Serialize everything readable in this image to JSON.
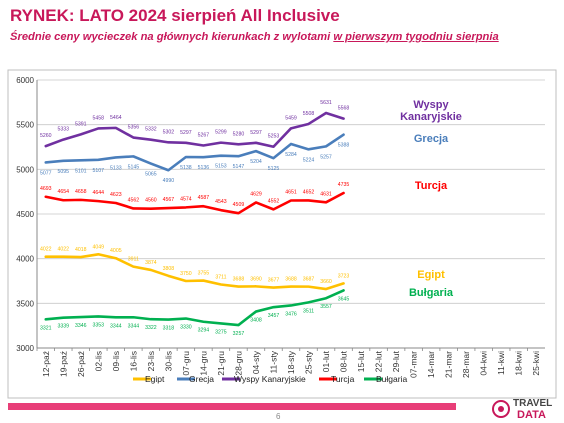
{
  "header": {
    "title": "RYNEK: LATO 2024 sierpień All Inclusive",
    "subtitle_prefix": "Średnie ceny wycieczek na głównych kierunkach z wylotami ",
    "subtitle_underlined": "w pierwszym tygodniu sierpnia"
  },
  "chart_data": {
    "type": "line",
    "categories": [
      "12-paź",
      "19-paź",
      "26-paź",
      "02-lis",
      "09-lis",
      "16-lis",
      "23-lis",
      "30-lis",
      "07-gru",
      "14-gru",
      "21-gru",
      "28-gru",
      "04-sty",
      "11-sty",
      "18-sty",
      "25-sty",
      "01-lut",
      "08-lut",
      "15-lut",
      "22-lut",
      "29-lut",
      "07-mar",
      "14-mar",
      "21-mar",
      "28-mar",
      "04-kwi",
      "11-kwi",
      "18-kwi",
      "25-kwi"
    ],
    "ylim": [
      3000,
      6000
    ],
    "yticks": [
      "3000",
      "3500",
      "4000",
      "4500",
      "5000",
      "5500",
      "6000"
    ],
    "grid": true,
    "legend_position": "bottom",
    "series": [
      {
        "name": "Egipt",
        "color": "#ffc000",
        "label_color": "#ffc000",
        "values": [
          4022,
          4022,
          4018,
          4049,
          4005,
          3911,
          3874,
          3808,
          3750,
          3755,
          3711,
          3688,
          3690,
          3677,
          3688,
          3687,
          3660,
          3723,
          null,
          null,
          null,
          null,
          null,
          null,
          null,
          null,
          null,
          null,
          null
        ],
        "labels": [
          "4022",
          "4022",
          "4018",
          "4049",
          "4005",
          "3911",
          "3874",
          "3808",
          "3750",
          "3755",
          "3711",
          "3688",
          "3690",
          "3677",
          "3688",
          "3687",
          "3660",
          "3723",
          "",
          "",
          "",
          "",
          "",
          "",
          "",
          "",
          "",
          "",
          ""
        ]
      },
      {
        "name": "Grecja",
        "color": "#4a7ebb",
        "label_color": "#4a7ebb",
        "values": [
          5077,
          5095,
          5101,
          5107,
          5133,
          5145,
          5065,
          4990,
          5138,
          5136,
          5153,
          5147,
          5204,
          5125,
          5284,
          5224,
          5257,
          5388,
          null,
          null,
          null,
          null,
          null,
          null,
          null,
          null,
          null,
          null,
          null
        ],
        "labels": [
          "5077",
          "5095",
          "5101",
          "5107",
          "5133",
          "5145",
          "5065",
          "4990",
          "5138",
          "5136",
          "5153",
          "5147",
          "5204",
          "5125",
          "5284",
          "5224",
          "5257",
          "5388",
          "",
          "",
          "",
          "",
          "",
          "",
          "",
          "",
          "",
          "",
          ""
        ]
      },
      {
        "name": "Wyspy Kanaryjskie",
        "color": "#7030a0",
        "label_color": "#7030a0",
        "values": [
          5260,
          5333,
          5391,
          5458,
          5464,
          5356,
          5332,
          5302,
          5297,
          5267,
          5299,
          5280,
          5297,
          5253,
          5459,
          5508,
          5631,
          5568,
          null,
          null,
          null,
          null,
          null,
          null,
          null,
          null,
          null,
          null,
          null
        ],
        "labels": [
          "5260",
          "5333",
          "5391",
          "5458",
          "5464",
          "5356",
          "5332",
          "5302",
          "5297",
          "5267",
          "5299",
          "5280",
          "5297",
          "5253",
          "5459",
          "5508",
          "5631",
          "5568",
          "",
          "",
          "",
          "",
          "",
          "",
          "",
          "",
          "",
          "",
          ""
        ]
      },
      {
        "name": "Turcja",
        "color": "#ff0000",
        "label_color": "#ff0000",
        "values": [
          4693,
          4654,
          4658,
          4644,
          4623,
          4562,
          4560,
          4567,
          4574,
          4587,
          4543,
          4509,
          4629,
          4552,
          4651,
          4652,
          4631,
          4735,
          null,
          null,
          null,
          null,
          null,
          null,
          null,
          null,
          null,
          null,
          null
        ],
        "labels": [
          "4693",
          "4654",
          "4658",
          "4644",
          "4623",
          "4562",
          "4560",
          "4567",
          "4574",
          "4587",
          "4543",
          "4509",
          "4629",
          "4552",
          "4651",
          "4652",
          "4631",
          "4735",
          "",
          "",
          "",
          "",
          "",
          "",
          "",
          "",
          "",
          "",
          ""
        ]
      },
      {
        "name": "Bułgaria",
        "color": "#00b050",
        "label_color": "#00b050",
        "values": [
          3321,
          3339,
          3346,
          3353,
          3344,
          3344,
          3322,
          3318,
          3330,
          3294,
          3275,
          3257,
          3408,
          3457,
          3476,
          3511,
          3557,
          3645,
          null,
          null,
          null,
          null,
          null,
          null,
          null,
          null,
          null,
          null,
          null
        ],
        "labels": [
          "3321",
          "3339",
          "3346",
          "3353",
          "3344",
          "3344",
          "3322",
          "3318",
          "3330",
          "3294",
          "3275",
          "3257",
          "3408",
          "3457",
          "3476",
          "3511",
          "3557",
          "3645",
          "",
          "",
          "",
          "",
          "",
          "",
          "",
          "",
          "",
          "",
          ""
        ]
      }
    ],
    "end_labels": [
      {
        "series": "Wyspy Kanaryjskie",
        "lines": [
          "Wyspy",
          "Kanaryjskie"
        ],
        "color": "#7030a0"
      },
      {
        "series": "Grecja",
        "lines": [
          "Grecja"
        ],
        "color": "#4a7ebb"
      },
      {
        "series": "Turcja",
        "lines": [
          "Turcja"
        ],
        "color": "#ff0000"
      },
      {
        "series": "Egipt",
        "lines": [
          "Egipt"
        ],
        "color": "#ffc000"
      },
      {
        "series": "Bułgaria",
        "lines": [
          "Bułgaria"
        ],
        "color": "#00b050"
      }
    ]
  },
  "footer": {
    "page_number": "6",
    "logo_line1": "TRAVEL",
    "logo_line2": "DATA"
  }
}
